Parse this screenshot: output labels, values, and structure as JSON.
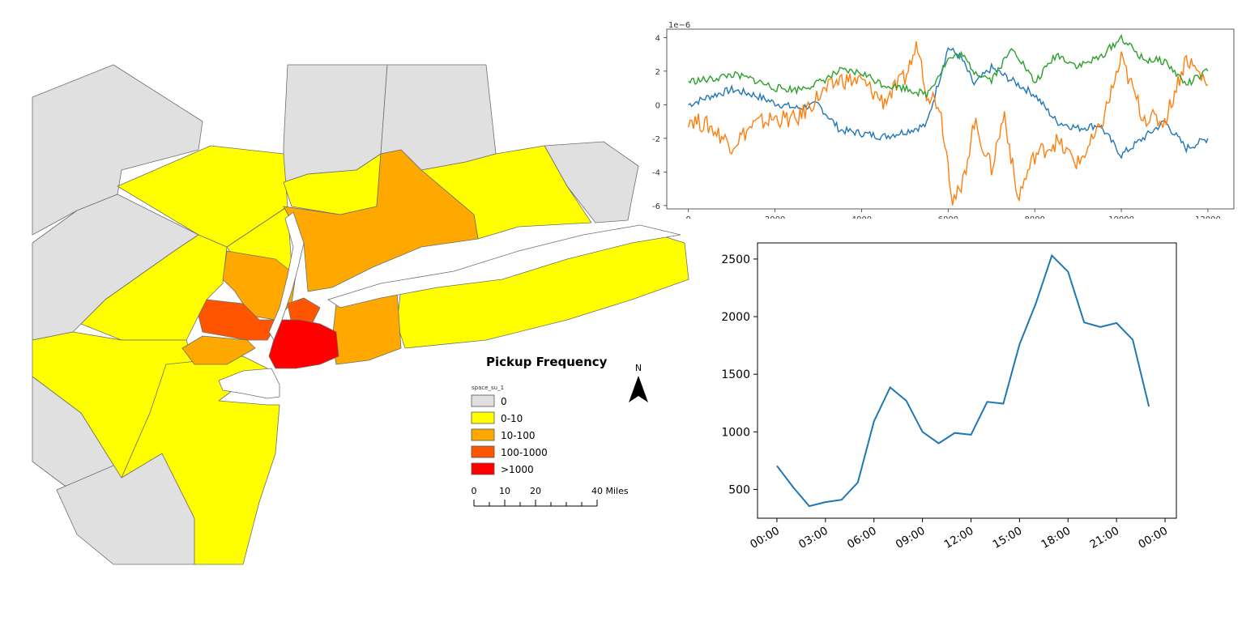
{
  "map": {
    "legend": {
      "title": "Pickup Frequency",
      "field": "space_su_1",
      "classes": [
        {
          "label": "0",
          "color": "#e0e0e0"
        },
        {
          "label": "0-10",
          "color": "#ffff00"
        },
        {
          "label": "10-100",
          "color": "#ffa800"
        },
        {
          "label": "100-1000",
          "color": "#ff5500"
        },
        {
          "label": ">1000",
          "color": "#ff0000"
        }
      ]
    },
    "north_arrow": "N",
    "scale_bar": {
      "labels": [
        "0",
        "10",
        "20",
        "40 Miles"
      ]
    }
  },
  "chart_data": [
    {
      "type": "line",
      "offset_label": "1e−6",
      "xlim": [
        0,
        12000
      ],
      "ylim": [
        -6.2,
        4.5
      ],
      "xticks": [
        0,
        2000,
        4000,
        6000,
        8000,
        10000,
        12000
      ],
      "yticks": [
        4,
        2,
        0,
        -2,
        -4,
        -6
      ],
      "series": [
        {
          "color": "#1f77b4",
          "x": [
            0,
            500,
            1000,
            1500,
            2000,
            2500,
            3000,
            3500,
            4000,
            4500,
            5000,
            5500,
            6000,
            6300,
            6600,
            7000,
            7500,
            8000,
            8500,
            9000,
            9500,
            10000,
            10500,
            11000,
            11500,
            12000
          ],
          "values": [
            0,
            0.5,
            0.9,
            0.6,
            0.1,
            -0.2,
            0,
            -1.5,
            -1.7,
            -1.9,
            -1.6,
            -1.2,
            3.4,
            2.8,
            1.2,
            2.2,
            1.4,
            0.6,
            -1.0,
            -1.4,
            -1.2,
            -3.0,
            -2.0,
            -1.0,
            -2.6,
            -2.0
          ]
        },
        {
          "color": "#ff7f0e",
          "x": [
            0,
            500,
            1000,
            1500,
            2000,
            2500,
            3000,
            3500,
            4000,
            4500,
            5000,
            5300,
            5500,
            5800,
            6000,
            6100,
            6300,
            6600,
            7000,
            7300,
            7600,
            8000,
            8500,
            9000,
            9500,
            10000,
            10500,
            11000,
            11500,
            12000
          ],
          "values": [
            -0.8,
            -1.3,
            -2.4,
            -1.2,
            -0.8,
            -0.9,
            0.5,
            1.5,
            1.4,
            0.2,
            1.6,
            3.6,
            0.8,
            0,
            -3.5,
            -5.6,
            -5.2,
            -1.0,
            -3.8,
            -0.5,
            -5.6,
            -3.0,
            -2.2,
            -3.5,
            -1.5,
            2.7,
            -0.7,
            -1.0,
            2.8,
            1.2
          ]
        },
        {
          "color": "#2ca02c",
          "x": [
            0,
            500,
            1000,
            1500,
            2000,
            2500,
            3000,
            3500,
            4000,
            4500,
            5000,
            5500,
            6000,
            6300,
            6600,
            7000,
            7500,
            8000,
            8500,
            9000,
            9500,
            10000,
            10500,
            11000,
            11500,
            12000
          ],
          "values": [
            1.4,
            1.5,
            1.8,
            1.5,
            1.0,
            0.9,
            1.3,
            2.0,
            1.9,
            1.2,
            1.0,
            0.6,
            2.7,
            3.0,
            2.0,
            1.5,
            3.4,
            1.3,
            3.0,
            2.3,
            2.8,
            4.0,
            2.7,
            2.6,
            1.2,
            2.0
          ]
        }
      ]
    },
    {
      "type": "line",
      "xticks": [
        "00:00",
        "03:00",
        "06:00",
        "09:00",
        "12:00",
        "15:00",
        "18:00",
        "21:00",
        "00:00"
      ],
      "yticks": [
        500,
        1000,
        1500,
        2000,
        2500
      ],
      "ylim": [
        250,
        2640
      ],
      "x_hours": [
        0,
        1,
        2,
        3,
        4,
        5,
        6,
        7,
        8,
        9,
        10,
        11,
        12,
        13,
        14,
        15,
        16,
        17,
        18,
        19,
        20,
        21,
        22,
        23
      ],
      "series": [
        {
          "color": "#1f77b4",
          "values": [
            705,
            520,
            355,
            390,
            410,
            560,
            1090,
            1385,
            1270,
            1000,
            900,
            990,
            975,
            1260,
            1245,
            1760,
            2110,
            2530,
            2390,
            1950,
            1910,
            1945,
            1800,
            1220
          ]
        }
      ]
    }
  ]
}
